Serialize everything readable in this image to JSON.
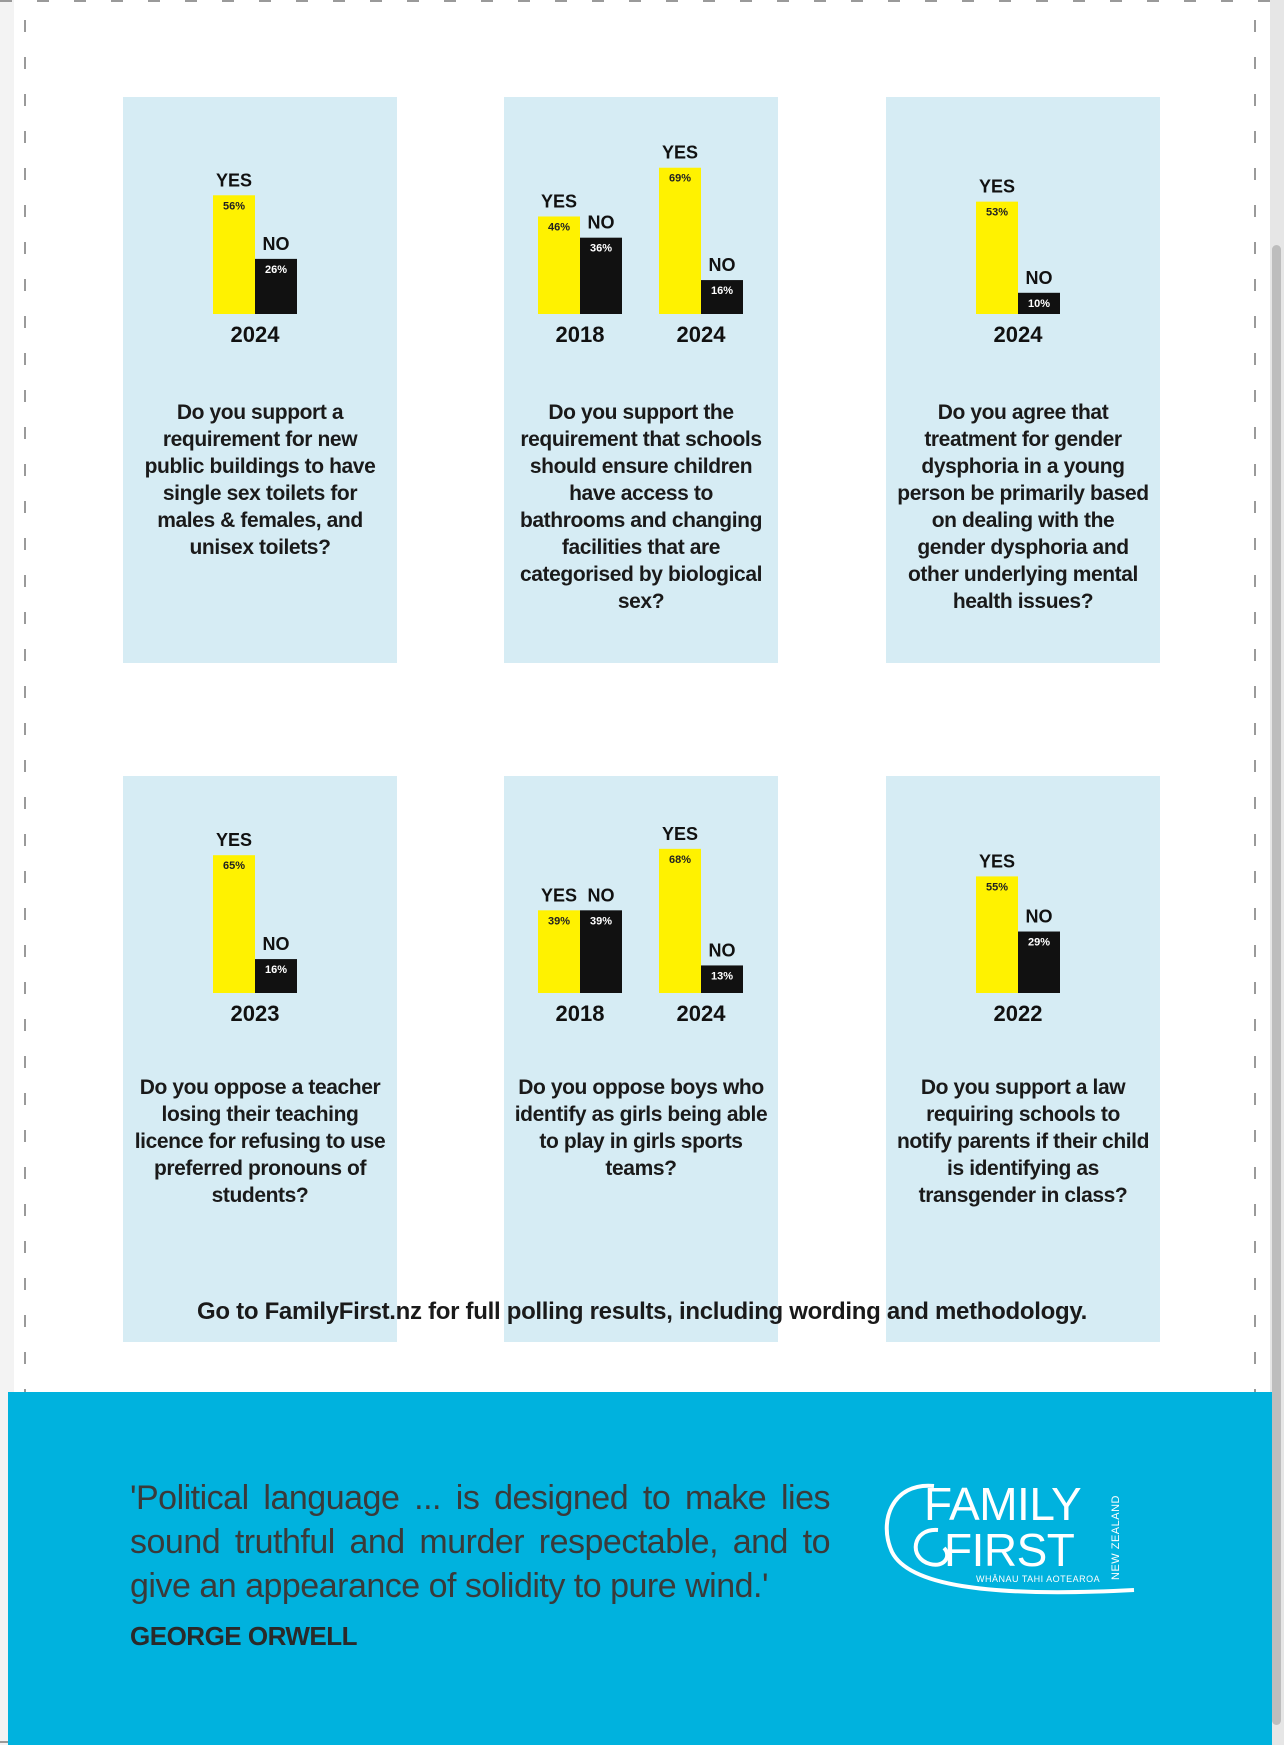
{
  "colors": {
    "yes": "#fff200",
    "no": "#111111",
    "card": "#d6ecf4",
    "band": "#00b2de"
  },
  "chart_data": [
    {
      "type": "bar",
      "groups": [
        {
          "year": "2024",
          "bars": [
            {
              "label": "YES",
              "value": 56,
              "text": "56%"
            },
            {
              "label": "NO",
              "value": 26,
              "text": "26%"
            }
          ]
        }
      ],
      "question": "Do you support a requirement for new public buildings to have single sex toilets for males & females, and unisex toilets?"
    },
    {
      "type": "bar",
      "groups": [
        {
          "year": "2018",
          "bars": [
            {
              "label": "YES",
              "value": 46,
              "text": "46%"
            },
            {
              "label": "NO",
              "value": 36,
              "text": "36%"
            }
          ]
        },
        {
          "year": "2024",
          "bars": [
            {
              "label": "YES",
              "value": 69,
              "text": "69%"
            },
            {
              "label": "NO",
              "value": 16,
              "text": "16%"
            }
          ]
        }
      ],
      "question": "Do you support the requirement that schools should ensure children have access to bathrooms and changing facilities that are categorised by biological sex?"
    },
    {
      "type": "bar",
      "groups": [
        {
          "year": "2024",
          "bars": [
            {
              "label": "YES",
              "value": 53,
              "text": "53%"
            },
            {
              "label": "NO",
              "value": 10,
              "text": "10%"
            }
          ]
        }
      ],
      "question": "Do you agree that treatment for gender dysphoria in a young person be primarily based on dealing with the gender dysphoria and other underlying mental health issues?"
    },
    {
      "type": "bar",
      "groups": [
        {
          "year": "2023",
          "bars": [
            {
              "label": "YES",
              "value": 65,
              "text": "65%"
            },
            {
              "label": "NO",
              "value": 16,
              "text": "16%"
            }
          ]
        }
      ],
      "question": "Do you oppose a teacher losing their teaching licence for refusing to use preferred pronouns of students?"
    },
    {
      "type": "bar",
      "groups": [
        {
          "year": "2018",
          "bars": [
            {
              "label": "YES",
              "value": 39,
              "text": "39%"
            },
            {
              "label": "NO",
              "value": 39,
              "text": "39%"
            }
          ]
        },
        {
          "year": "2024",
          "bars": [
            {
              "label": "YES",
              "value": 68,
              "text": "68%"
            },
            {
              "label": "NO",
              "value": 13,
              "text": "13%"
            }
          ]
        }
      ],
      "question": "Do you oppose boys who identify as girls being able to play in girls sports teams?"
    },
    {
      "type": "bar",
      "groups": [
        {
          "year": "2022",
          "bars": [
            {
              "label": "YES",
              "value": 55,
              "text": "55%"
            },
            {
              "label": "NO",
              "value": 29,
              "text": "29%"
            }
          ]
        }
      ],
      "question": "Do you support a law requiring schools to notify parents if their child is identifying as transgender in class?"
    }
  ],
  "footnote": "Go to FamilyFirst.nz for full polling results, including wording and methodology.",
  "quote": {
    "text": "'Political language ... is designed to make lies sound truthful and murder respectable, and to give an appearance of solidity to pure wind.'",
    "author": "GEORGE ORWELL"
  },
  "logo": {
    "line1": "FAMILY",
    "line2": "FIRST",
    "subtitle": "WHĀNAU TAHI AOTEAROA",
    "side": "NEW ZEALAND",
    "icon": "koru-swirl-icon"
  }
}
